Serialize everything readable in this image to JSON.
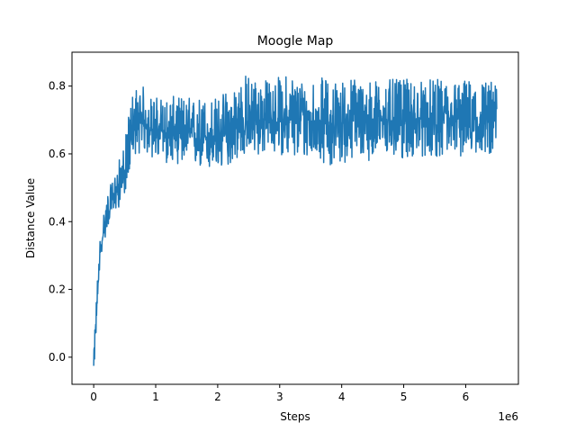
{
  "chart_data": {
    "type": "line",
    "title": "Moogle Map",
    "xlabel": "Steps",
    "ylabel": "Distance Value",
    "x_offset_label": "1e6",
    "xlim": [
      -0.35,
      6.85
    ],
    "ylim": [
      -0.08,
      0.9
    ],
    "x_ticks": [
      0,
      1,
      2,
      3,
      4,
      5,
      6
    ],
    "x_tick_labels": [
      "0",
      "1",
      "2",
      "3",
      "4",
      "5",
      "6"
    ],
    "y_ticks": [
      0.0,
      0.2,
      0.4,
      0.6,
      0.8
    ],
    "y_tick_labels": [
      "0.0",
      "0.2",
      "0.4",
      "0.6",
      "0.8"
    ],
    "grid": false,
    "series": [
      {
        "color": "#1f77b4",
        "x": [
          0,
          0.02,
          0.05,
          0.08,
          0.1,
          0.15,
          0.2,
          0.25,
          0.3,
          0.35,
          0.4,
          0.45,
          0.5,
          0.55,
          0.6,
          0.65,
          0.7,
          0.8,
          0.9,
          1.0,
          1.2,
          1.4,
          1.6,
          1.8,
          2.0,
          2.2,
          2.4,
          2.6,
          2.8,
          3.0,
          3.2,
          3.4,
          3.6,
          3.8,
          4.0,
          4.2,
          4.4,
          4.6,
          4.8,
          5.0,
          5.2,
          5.4,
          5.6,
          5.8,
          6.0,
          6.2,
          6.4,
          6.5
        ],
        "mean": [
          -0.03,
          0.05,
          0.15,
          0.25,
          0.3,
          0.36,
          0.41,
          0.44,
          0.46,
          0.48,
          0.5,
          0.52,
          0.55,
          0.59,
          0.64,
          0.67,
          0.68,
          0.69,
          0.68,
          0.67,
          0.66,
          0.66,
          0.65,
          0.65,
          0.64,
          0.66,
          0.69,
          0.7,
          0.7,
          0.7,
          0.7,
          0.7,
          0.7,
          0.69,
          0.69,
          0.7,
          0.7,
          0.7,
          0.7,
          0.7,
          0.7,
          0.7,
          0.7,
          0.7,
          0.7,
          0.7,
          0.7,
          0.7
        ],
        "low": [
          -0.04,
          0.0,
          0.1,
          0.2,
          0.28,
          0.33,
          0.36,
          0.4,
          0.41,
          0.43,
          0.44,
          0.46,
          0.48,
          0.52,
          0.57,
          0.6,
          0.6,
          0.6,
          0.59,
          0.58,
          0.57,
          0.57,
          0.56,
          0.55,
          0.54,
          0.57,
          0.59,
          0.59,
          0.6,
          0.6,
          0.58,
          0.58,
          0.59,
          0.56,
          0.57,
          0.58,
          0.58,
          0.58,
          0.59,
          0.58,
          0.59,
          0.59,
          0.59,
          0.59,
          0.59,
          0.6,
          0.6,
          0.59
        ],
        "high": [
          0.0,
          0.1,
          0.2,
          0.3,
          0.35,
          0.42,
          0.47,
          0.5,
          0.52,
          0.55,
          0.58,
          0.6,
          0.63,
          0.7,
          0.77,
          0.8,
          0.8,
          0.8,
          0.77,
          0.77,
          0.77,
          0.77,
          0.77,
          0.77,
          0.77,
          0.8,
          0.84,
          0.83,
          0.82,
          0.83,
          0.84,
          0.82,
          0.83,
          0.82,
          0.82,
          0.83,
          0.82,
          0.82,
          0.82,
          0.82,
          0.82,
          0.82,
          0.82,
          0.82,
          0.82,
          0.82,
          0.82,
          0.8
        ]
      }
    ]
  }
}
